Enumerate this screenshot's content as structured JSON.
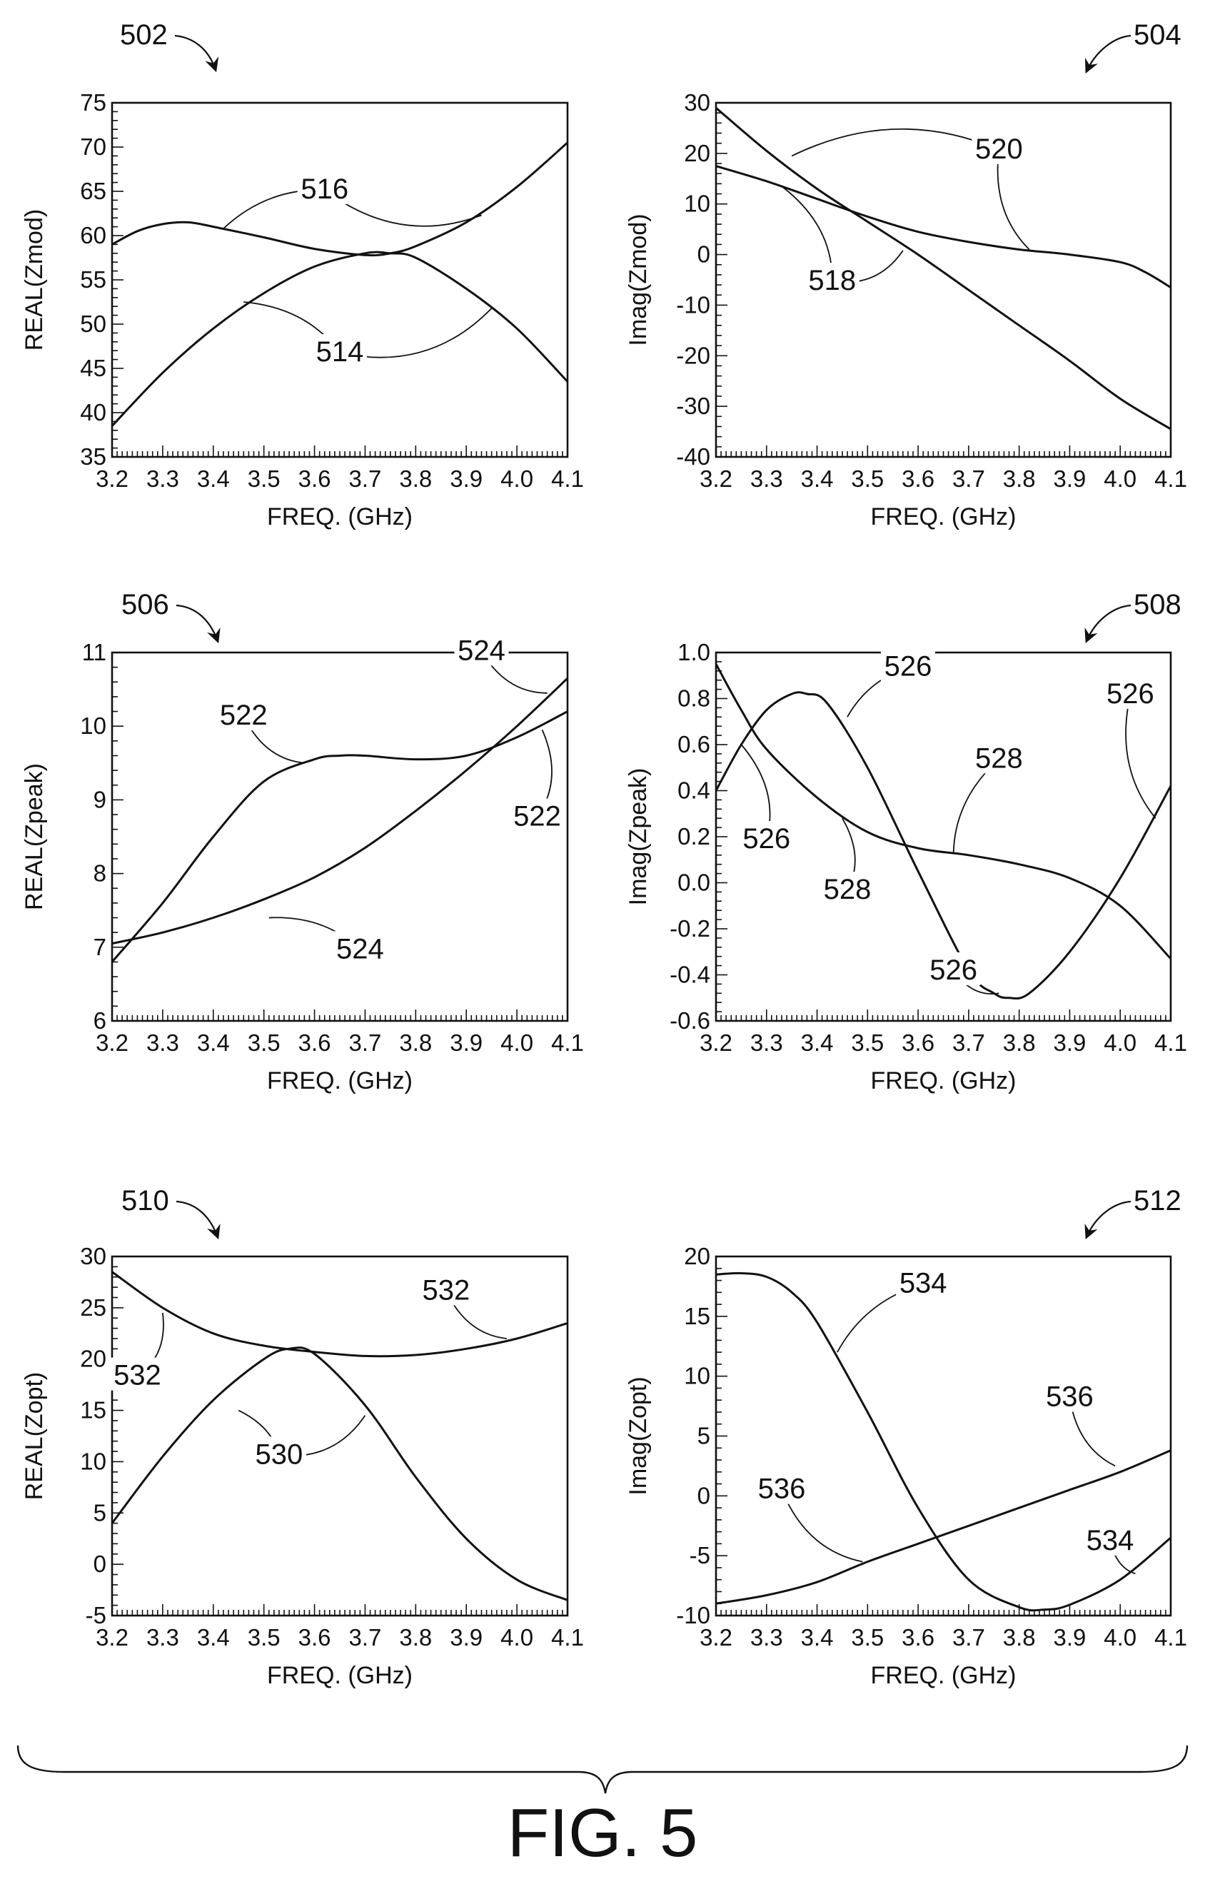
{
  "figure": {
    "caption": "FIG. 5",
    "brace": true
  },
  "chart_data": [
    {
      "ref": "502",
      "type": "line",
      "title": "",
      "xlabel": "FREQ. (GHz)",
      "ylabel": "REAL(Zmod)",
      "xlim": [
        3.2,
        4.1
      ],
      "ylim": [
        35,
        75
      ],
      "xticks": [
        3.2,
        3.3,
        3.4,
        3.5,
        3.6,
        3.7,
        3.8,
        3.9,
        4.0,
        4.1
      ],
      "xtick_labels": [
        "3.2",
        "3.3",
        "3.4",
        "3.5",
        "3.6",
        "3.7",
        "3.8",
        "3.9",
        "4.0",
        "4.1"
      ],
      "yticks": [
        35,
        40,
        45,
        50,
        55,
        60,
        65,
        70,
        75
      ],
      "ytick_labels": [
        "35",
        "40",
        "45",
        "50",
        "55",
        "60",
        "65",
        "70",
        "75"
      ],
      "series": [
        {
          "label": "514",
          "x": [
            3.2,
            3.3,
            3.4,
            3.5,
            3.6,
            3.7,
            3.75,
            3.8,
            3.9,
            4.0,
            4.1
          ],
          "y": [
            38.5,
            44.5,
            49.5,
            53.5,
            56.5,
            58,
            58,
            57.5,
            54,
            49.5,
            43.5
          ]
        },
        {
          "label": "516",
          "x": [
            3.2,
            3.25,
            3.3,
            3.35,
            3.4,
            3.5,
            3.6,
            3.7,
            3.75,
            3.8,
            3.9,
            4.0,
            4.1
          ],
          "y": [
            59,
            60.5,
            61.3,
            61.5,
            61,
            59.8,
            58.5,
            57.8,
            58,
            58.8,
            61.5,
            65.5,
            70.5
          ]
        }
      ],
      "callouts": [
        {
          "text": "516",
          "x": 3.62,
          "y": 64.2,
          "targets": [
            [
              3.42,
              60.8
            ],
            [
              3.93,
              62.3
            ]
          ]
        },
        {
          "text": "514",
          "x": 3.65,
          "y": 45.8,
          "targets": [
            [
              3.46,
              52.5
            ],
            [
              3.95,
              51.8
            ]
          ]
        }
      ]
    },
    {
      "ref": "504",
      "type": "line",
      "title": "",
      "xlabel": "FREQ. (GHz)",
      "ylabel": "Imag(Zmod)",
      "xlim": [
        3.2,
        4.1
      ],
      "ylim": [
        -40,
        30
      ],
      "xticks": [
        3.2,
        3.3,
        3.4,
        3.5,
        3.6,
        3.7,
        3.8,
        3.9,
        4.0,
        4.1
      ],
      "xtick_labels": [
        "3.2",
        "3.3",
        "3.4",
        "3.5",
        "3.6",
        "3.7",
        "3.8",
        "3.9",
        "4.0",
        "4.1"
      ],
      "yticks": [
        -40,
        -30,
        -20,
        -10,
        0,
        10,
        20,
        30
      ],
      "ytick_labels": [
        "-40",
        "-30",
        "-20",
        "-10",
        "0",
        "10",
        "20",
        "30"
      ],
      "series": [
        {
          "label": "518",
          "x": [
            3.2,
            3.3,
            3.4,
            3.5,
            3.6,
            3.7,
            3.8,
            3.9,
            4.0,
            4.1
          ],
          "y": [
            29,
            20.5,
            13,
            6.5,
            0,
            -7,
            -14,
            -21,
            -28.5,
            -34.5
          ]
        },
        {
          "label": "520",
          "x": [
            3.2,
            3.3,
            3.4,
            3.5,
            3.6,
            3.7,
            3.8,
            3.9,
            4.0,
            4.05,
            4.1
          ],
          "y": [
            17.5,
            14.5,
            11,
            7.5,
            4.5,
            2.5,
            1,
            0,
            -1.5,
            -3.5,
            -6.5
          ]
        }
      ],
      "callouts": [
        {
          "text": "520",
          "x": 3.76,
          "y": 19,
          "targets": [
            [
              3.35,
              19.5
            ],
            [
              3.82,
              1
            ]
          ]
        },
        {
          "text": "518",
          "x": 3.43,
          "y": -7,
          "targets": [
            [
              3.33,
              13.5
            ],
            [
              3.57,
              0.8
            ]
          ]
        }
      ]
    },
    {
      "ref": "506",
      "type": "line",
      "title": "",
      "xlabel": "FREQ. (GHz)",
      "ylabel": "REAL(Zpeak)",
      "xlim": [
        3.2,
        4.1
      ],
      "ylim": [
        6,
        11
      ],
      "xticks": [
        3.2,
        3.3,
        3.4,
        3.5,
        3.6,
        3.7,
        3.8,
        3.9,
        4.0,
        4.1
      ],
      "xtick_labels": [
        "3.2",
        "3.3",
        "3.4",
        "3.5",
        "3.6",
        "3.7",
        "3.8",
        "3.9",
        "4.0",
        "4.1"
      ],
      "yticks": [
        6,
        7,
        8,
        9,
        10,
        11
      ],
      "ytick_labels": [
        "6",
        "7",
        "8",
        "9",
        "10",
        "11"
      ],
      "series": [
        {
          "label": "522",
          "x": [
            3.2,
            3.3,
            3.4,
            3.5,
            3.6,
            3.65,
            3.7,
            3.8,
            3.9,
            4.0,
            4.1
          ],
          "y": [
            6.8,
            7.6,
            8.5,
            9.25,
            9.55,
            9.6,
            9.6,
            9.55,
            9.6,
            9.85,
            10.2
          ]
        },
        {
          "label": "524",
          "x": [
            3.2,
            3.3,
            3.4,
            3.5,
            3.6,
            3.7,
            3.8,
            3.9,
            4.0,
            4.1
          ],
          "y": [
            7.05,
            7.2,
            7.4,
            7.65,
            7.95,
            8.35,
            8.85,
            9.4,
            10,
            10.65
          ]
        }
      ],
      "callouts": [
        {
          "text": "522",
          "x": 3.46,
          "y": 10.02,
          "targets": [
            [
              3.58,
              9.5
            ]
          ]
        },
        {
          "text": "524",
          "x": 3.93,
          "y": 10.9,
          "targets": [
            [
              4.06,
              10.45
            ]
          ]
        },
        {
          "text": "522",
          "x": 4.04,
          "y": 8.65,
          "targets": [
            [
              4.05,
              9.95
            ]
          ]
        },
        {
          "text": "524",
          "x": 3.69,
          "y": 6.85,
          "targets": [
            [
              3.51,
              7.4
            ]
          ]
        }
      ]
    },
    {
      "ref": "508",
      "type": "line",
      "title": "",
      "xlabel": "FREQ. (GHz)",
      "ylabel": "Imag(Zpeak)",
      "xlim": [
        3.2,
        4.1
      ],
      "ylim": [
        -0.6,
        1.0
      ],
      "xticks": [
        3.2,
        3.3,
        3.4,
        3.5,
        3.6,
        3.7,
        3.8,
        3.9,
        4.0,
        4.1
      ],
      "xtick_labels": [
        "3.2",
        "3.3",
        "3.4",
        "3.5",
        "3.6",
        "3.7",
        "3.8",
        "3.9",
        "4.0",
        "4.1"
      ],
      "yticks": [
        -0.6,
        -0.4,
        -0.2,
        0.0,
        0.2,
        0.4,
        0.6,
        0.8,
        1.0
      ],
      "ytick_labels": [
        "-0.6",
        "-0.4",
        "-0.2",
        "0.0",
        "0.2",
        "0.4",
        "0.6",
        "0.8",
        "1.0"
      ],
      "series": [
        {
          "label": "526",
          "x": [
            3.2,
            3.25,
            3.3,
            3.35,
            3.38,
            3.42,
            3.5,
            3.6,
            3.7,
            3.75,
            3.78,
            3.82,
            3.9,
            4.0,
            4.1
          ],
          "y": [
            0.4,
            0.6,
            0.75,
            0.82,
            0.82,
            0.78,
            0.5,
            0.05,
            -0.38,
            -0.48,
            -0.5,
            -0.48,
            -0.3,
            0.02,
            0.42
          ]
        },
        {
          "label": "528",
          "x": [
            3.2,
            3.25,
            3.3,
            3.4,
            3.5,
            3.6,
            3.7,
            3.8,
            3.9,
            4.0,
            4.1
          ],
          "y": [
            0.95,
            0.75,
            0.58,
            0.37,
            0.22,
            0.15,
            0.12,
            0.08,
            0.02,
            -0.1,
            -0.33
          ]
        }
      ],
      "callouts": [
        {
          "text": "526",
          "x": 3.58,
          "y": 0.9,
          "targets": [
            [
              3.46,
              0.72
            ]
          ]
        },
        {
          "text": "526",
          "x": 4.02,
          "y": 0.78,
          "targets": [
            [
              4.07,
              0.28
            ]
          ]
        },
        {
          "text": "528",
          "x": 3.76,
          "y": 0.5,
          "targets": [
            [
              3.67,
              0.13
            ]
          ]
        },
        {
          "text": "526",
          "x": 3.3,
          "y": 0.15,
          "targets": [
            [
              3.25,
              0.6
            ]
          ]
        },
        {
          "text": "528",
          "x": 3.46,
          "y": -0.07,
          "targets": [
            [
              3.45,
              0.28
            ]
          ]
        },
        {
          "text": "526",
          "x": 3.67,
          "y": -0.42,
          "targets": [
            [
              3.76,
              -0.48
            ]
          ]
        }
      ]
    },
    {
      "ref": "510",
      "type": "line",
      "title": "",
      "xlabel": "FREQ. (GHz)",
      "ylabel": "REAL(Zopt)",
      "xlim": [
        3.2,
        4.1
      ],
      "ylim": [
        -5,
        30
      ],
      "xticks": [
        3.2,
        3.3,
        3.4,
        3.5,
        3.6,
        3.7,
        3.8,
        3.9,
        4.0,
        4.1
      ],
      "xtick_labels": [
        "3.2",
        "3.3",
        "3.4",
        "3.5",
        "3.6",
        "3.7",
        "3.8",
        "3.9",
        "4.0",
        "4.1"
      ],
      "yticks": [
        -5,
        0,
        5,
        10,
        15,
        20,
        25,
        30
      ],
      "ytick_labels": [
        "-5",
        "0",
        "5",
        "10",
        "15",
        "20",
        "25",
        "30"
      ],
      "series": [
        {
          "label": "530",
          "x": [
            3.2,
            3.3,
            3.4,
            3.5,
            3.55,
            3.6,
            3.7,
            3.8,
            3.9,
            4.0,
            4.1
          ],
          "y": [
            4,
            10.5,
            16,
            20,
            21,
            20.5,
            15.5,
            8.5,
            2.5,
            -1.5,
            -3.5
          ]
        },
        {
          "label": "532",
          "x": [
            3.2,
            3.3,
            3.4,
            3.5,
            3.6,
            3.7,
            3.8,
            3.9,
            4.0,
            4.1
          ],
          "y": [
            28.5,
            25,
            22.5,
            21.3,
            20.7,
            20.3,
            20.4,
            21,
            22,
            23.5
          ]
        }
      ],
      "callouts": [
        {
          "text": "532",
          "x": 3.86,
          "y": 25.8,
          "targets": [
            [
              3.98,
              22
            ]
          ]
        },
        {
          "text": "532",
          "x": 3.25,
          "y": 17.5,
          "targets": [
            [
              3.3,
              24.5
            ]
          ]
        },
        {
          "text": "530",
          "x": 3.53,
          "y": 9.8,
          "targets": [
            [
              3.45,
              15
            ],
            [
              3.7,
              14.5
            ]
          ]
        }
      ]
    },
    {
      "ref": "512",
      "type": "line",
      "title": "",
      "xlabel": "FREQ. (GHz)",
      "ylabel": "Imag(Zopt)",
      "xlim": [
        3.2,
        4.1
      ],
      "ylim": [
        -10,
        20
      ],
      "xticks": [
        3.2,
        3.3,
        3.4,
        3.5,
        3.6,
        3.7,
        3.8,
        3.9,
        4.0,
        4.1
      ],
      "xtick_labels": [
        "3.2",
        "3.3",
        "3.4",
        "3.5",
        "3.6",
        "3.7",
        "3.8",
        "3.9",
        "4.0",
        "4.1"
      ],
      "yticks": [
        -10,
        -5,
        0,
        5,
        10,
        15,
        20
      ],
      "ytick_labels": [
        "-10",
        "-5",
        "0",
        "5",
        "10",
        "15",
        "20"
      ],
      "series": [
        {
          "label": "534",
          "x": [
            3.2,
            3.25,
            3.3,
            3.35,
            3.4,
            3.5,
            3.6,
            3.7,
            3.8,
            3.85,
            3.9,
            4.0,
            4.1
          ],
          "y": [
            18.5,
            18.6,
            18.3,
            17,
            14.5,
            7,
            -1,
            -7,
            -9.3,
            -9.5,
            -9.1,
            -7,
            -3.5
          ]
        },
        {
          "label": "536",
          "x": [
            3.2,
            3.3,
            3.4,
            3.5,
            3.6,
            3.7,
            3.8,
            3.9,
            4.0,
            4.1
          ],
          "y": [
            -9,
            -8.3,
            -7.2,
            -5.5,
            -4,
            -2.5,
            -1,
            0.5,
            2,
            3.8
          ]
        }
      ],
      "callouts": [
        {
          "text": "534",
          "x": 3.61,
          "y": 17,
          "targets": [
            [
              3.44,
              12
            ]
          ]
        },
        {
          "text": "536",
          "x": 3.9,
          "y": 7.5,
          "targets": [
            [
              3.99,
              2.5
            ]
          ]
        },
        {
          "text": "536",
          "x": 3.33,
          "y": -0.2,
          "targets": [
            [
              3.49,
              -5.5
            ]
          ]
        },
        {
          "text": "534",
          "x": 3.98,
          "y": -4.5,
          "targets": [
            [
              4.03,
              -6.5
            ]
          ]
        }
      ]
    }
  ]
}
